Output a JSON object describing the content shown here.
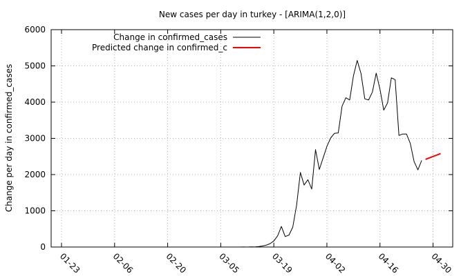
{
  "chart_data": {
    "type": "line",
    "title": "New cases per day in turkey -  [ARIMA(1,2,0)]",
    "xlabel": "",
    "ylabel": "Change per day in confirmed_cases",
    "x_tick_labels": [
      "01-23",
      "02-06",
      "02-20",
      "03-05",
      "03-19",
      "04-02",
      "04-16",
      "04-30"
    ],
    "x_tick_dates": [
      "2020-01-23",
      "2020-02-06",
      "2020-02-20",
      "2020-03-05",
      "2020-03-19",
      "2020-04-02",
      "2020-04-16",
      "2020-04-30"
    ],
    "xlim": [
      "2020-01-23",
      "2020-05-03"
    ],
    "ylim": [
      0,
      6000
    ],
    "y_ticks": [
      0,
      1000,
      2000,
      3000,
      4000,
      5000,
      6000
    ],
    "grid": true,
    "legend_position": "top-left",
    "series": [
      {
        "name": "Change in confirmed_cases",
        "color": "#000000",
        "points": [
          [
            "2020-03-08",
            0
          ],
          [
            "2020-03-10",
            0
          ],
          [
            "2020-03-11",
            1
          ],
          [
            "2020-03-12",
            0
          ],
          [
            "2020-03-13",
            4
          ],
          [
            "2020-03-14",
            1
          ],
          [
            "2020-03-15",
            12
          ],
          [
            "2020-03-16",
            29
          ],
          [
            "2020-03-17",
            51
          ],
          [
            "2020-03-18",
            93
          ],
          [
            "2020-03-19",
            168
          ],
          [
            "2020-03-20",
            311
          ],
          [
            "2020-03-21",
            567
          ],
          [
            "2020-03-22",
            289
          ],
          [
            "2020-03-23",
            331
          ],
          [
            "2020-03-24",
            550
          ],
          [
            "2020-03-25",
            1150
          ],
          [
            "2020-03-26",
            2060
          ],
          [
            "2020-03-27",
            1710
          ],
          [
            "2020-03-28",
            1860
          ],
          [
            "2020-03-29",
            1600
          ],
          [
            "2020-03-30",
            2690
          ],
          [
            "2020-03-31",
            2140
          ],
          [
            "2020-04-01",
            2460
          ],
          [
            "2020-04-02",
            2780
          ],
          [
            "2020-04-03",
            3010
          ],
          [
            "2020-04-04",
            3140
          ],
          [
            "2020-04-05",
            3150
          ],
          [
            "2020-04-06",
            3890
          ],
          [
            "2020-04-07",
            4120
          ],
          [
            "2020-04-08",
            4060
          ],
          [
            "2020-04-09",
            4730
          ],
          [
            "2020-04-10",
            5150
          ],
          [
            "2020-04-11",
            4790
          ],
          [
            "2020-04-12",
            4090
          ],
          [
            "2020-04-13",
            4060
          ],
          [
            "2020-04-14",
            4280
          ],
          [
            "2020-04-15",
            4800
          ],
          [
            "2020-04-16",
            4350
          ],
          [
            "2020-04-17",
            3780
          ],
          [
            "2020-04-18",
            3980
          ],
          [
            "2020-04-19",
            4670
          ],
          [
            "2020-04-20",
            4620
          ],
          [
            "2020-04-21",
            3080
          ],
          [
            "2020-04-22",
            3120
          ],
          [
            "2020-04-23",
            3120
          ],
          [
            "2020-04-24",
            2860
          ],
          [
            "2020-04-25",
            2360
          ],
          [
            "2020-04-26",
            2130
          ],
          [
            "2020-04-27",
            2390
          ]
        ]
      },
      {
        "name": "Predicted change in confirmed_c",
        "color": "#ff0000",
        "points": [
          [
            "2020-04-28",
            2420
          ],
          [
            "2020-05-02",
            2580
          ]
        ]
      }
    ]
  }
}
